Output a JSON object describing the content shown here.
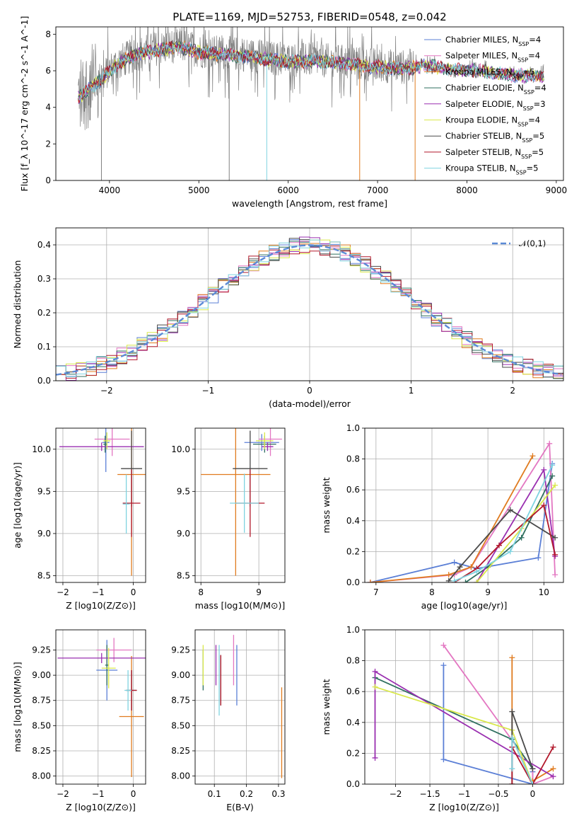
{
  "figure_title": "PLATE=1169, MJD=52753, FIBERID=0548, z=0.042",
  "models": [
    {
      "name": "Chabrier MILES, N",
      "sub": "SSP",
      "nssp": "=4",
      "color": "#5b7fd6"
    },
    {
      "name": "Salpeter MILES, N",
      "sub": "SSP",
      "nssp": "=4",
      "color": "#e377c2"
    },
    {
      "name": "Kroupa MILES, N",
      "sub": "SSP",
      "nssp": "=5",
      "color": "#e07b1f"
    },
    {
      "name": "Chabrier ELODIE, N",
      "sub": "SSP",
      "nssp": "=4",
      "color": "#2f6f5f"
    },
    {
      "name": "Salpeter ELODIE, N",
      "sub": "SSP",
      "nssp": "=3",
      "color": "#9a2fb0"
    },
    {
      "name": "Kroupa ELODIE, N",
      "sub": "SSP",
      "nssp": "=4",
      "color": "#d9e84a"
    },
    {
      "name": "Chabrier STELIB, N",
      "sub": "SSP",
      "nssp": "=5",
      "color": "#4a4a4a"
    },
    {
      "name": "Salpeter STELIB, N",
      "sub": "SSP",
      "nssp": "=5",
      "color": "#b2182b"
    },
    {
      "name": "Kroupa STELIB, N",
      "sub": "SSP",
      "nssp": "=5",
      "color": "#7fd3e0"
    }
  ],
  "chart_data": [
    {
      "id": "spectrum",
      "type": "line",
      "xlabel": "wavelength [Angstrom, rest frame]",
      "ylabel": "Flux [f_λ 10^-17 erg cm^-2 s^-1 A^-1]",
      "xlim": [
        3400,
        9080
      ],
      "ylim": [
        0,
        8.4
      ],
      "xticks": [
        4000,
        5000,
        6000,
        7000,
        8000,
        9000
      ],
      "yticks": [
        0,
        2,
        4,
        6,
        8
      ],
      "data_color": "#808080",
      "data_continuum": {
        "x": [
          3650,
          3900,
          4100,
          4300,
          4500,
          4800,
          5000,
          5200,
          5500,
          5800,
          6000,
          6300,
          6600,
          7000,
          7300,
          7500,
          7800,
          8100,
          8400,
          8800
        ],
        "y": [
          4.6,
          5.6,
          6.5,
          6.9,
          7.2,
          7.4,
          7.1,
          7.0,
          6.9,
          6.7,
          6.6,
          6.6,
          6.5,
          6.3,
          6.2,
          6.4,
          6.2,
          6.1,
          5.9,
          5.8
        ]
      },
      "data_noise": [
        {
          "x_range": [
            3650,
            7400
          ],
          "amplitude": 1.8
        },
        {
          "x_range": [
            7400,
            8900
          ],
          "amplitude": 0.4
        }
      ],
      "model_continuum": {
        "x": [
          3650,
          3900,
          4100,
          4300,
          4500,
          4800,
          5000,
          5200,
          5500,
          5800,
          6000,
          6300,
          6600,
          7000,
          7300,
          7500,
          7800,
          8100,
          8400,
          8800
        ],
        "y": [
          4.5,
          5.5,
          6.4,
          6.9,
          7.1,
          7.3,
          7.0,
          6.9,
          6.8,
          6.6,
          6.5,
          6.5,
          6.4,
          6.2,
          6.1,
          6.3,
          6.1,
          6.0,
          5.8,
          5.7
        ]
      },
      "model_ends": [
        {
          "model": 2,
          "x_end": 7420
        },
        {
          "model": 8,
          "x_end": 8790
        }
      ],
      "dips": [
        {
          "x": 3780,
          "y": 3.3
        },
        {
          "x": 3910,
          "y": 0.0
        },
        {
          "x": 5340,
          "y": 0.0
        },
        {
          "x": 5760,
          "y": 0.0
        },
        {
          "x": 6800,
          "y": 0.0
        },
        {
          "x": 7420,
          "y": 0.0
        }
      ]
    },
    {
      "id": "residuals",
      "type": "histogram",
      "xlabel": "(data-model)/error",
      "ylabel": "Normed distribution",
      "xlim": [
        -2.5,
        2.5
      ],
      "ylim": [
        0,
        0.45
      ],
      "xticks": [
        -2,
        -1,
        0,
        1,
        2
      ],
      "yticks": [
        0.0,
        0.1,
        0.2,
        0.3,
        0.4
      ],
      "bin_width": 0.1,
      "reference_curve": {
        "label": "𝒩(0,1)",
        "color": "#5b8ad6",
        "style": "dashed"
      }
    },
    {
      "id": "age_vs_Z",
      "type": "errorbar",
      "xlabel": "Z [log10(Z/Z⊙)]",
      "ylabel": "age [log10(age/yr)]",
      "xlim": [
        -2.2,
        0.35
      ],
      "ylim": [
        8.42,
        10.25
      ],
      "xticks": [
        -2,
        -1,
        0
      ],
      "yticks": [
        8.5,
        9.0,
        9.5,
        10.0
      ],
      "points": [
        {
          "m": 0,
          "x": -0.78,
          "y": 10.08,
          "xerr": 0.1,
          "yerr": 0.35
        },
        {
          "m": 1,
          "x": -0.6,
          "y": 10.12,
          "xerr": 0.5,
          "yerr": 0.2
        },
        {
          "m": 2,
          "x": -0.05,
          "y": 9.7,
          "xerr": 0.4,
          "yerr": 1.2
        },
        {
          "m": 3,
          "x": -0.8,
          "y": 10.06,
          "xerr": 0.05,
          "yerr": 0.1
        },
        {
          "m": 4,
          "x": -0.9,
          "y": 10.03,
          "xerr": 1.2,
          "yerr": 0.05
        },
        {
          "m": 5,
          "x": -0.75,
          "y": 10.1,
          "xerr": 0.1,
          "yerr": 0.1
        },
        {
          "m": 6,
          "x": -0.05,
          "y": 9.77,
          "xerr": 0.3,
          "yerr": 0.45
        },
        {
          "m": 7,
          "x": -0.05,
          "y": 9.36,
          "xerr": 0.25,
          "yerr": 0.4
        },
        {
          "m": 8,
          "x": -0.2,
          "y": 9.35,
          "xerr": 0.1,
          "yerr": 0.35
        }
      ]
    },
    {
      "id": "age_vs_mass",
      "type": "errorbar",
      "xlabel": "mass [log10(M/M⊙)]",
      "ylabel": "",
      "xlim": [
        7.9,
        9.45
      ],
      "ylim": [
        8.42,
        10.25
      ],
      "xticks": [
        8,
        9
      ],
      "yticks": [
        8.5,
        9.0,
        9.5,
        10.0
      ],
      "points": [
        {
          "m": 0,
          "x": 9.05,
          "y": 10.08,
          "xerr": 0.3,
          "yerr": 0.1
        },
        {
          "m": 1,
          "x": 9.2,
          "y": 10.12,
          "xerr": 0.2,
          "yerr": 0.2
        },
        {
          "m": 2,
          "x": 8.6,
          "y": 9.7,
          "xerr": 0.6,
          "yerr": 1.2
        },
        {
          "m": 3,
          "x": 9.1,
          "y": 10.06,
          "xerr": 0.2,
          "yerr": 0.1
        },
        {
          "m": 4,
          "x": 9.15,
          "y": 10.03,
          "xerr": 0.1,
          "yerr": 0.05
        },
        {
          "m": 5,
          "x": 9.1,
          "y": 10.1,
          "xerr": 0.15,
          "yerr": 0.1
        },
        {
          "m": 6,
          "x": 8.85,
          "y": 9.77,
          "xerr": 0.3,
          "yerr": 0.45
        },
        {
          "m": 7,
          "x": 8.85,
          "y": 9.36,
          "xerr": 0.25,
          "yerr": 0.4
        },
        {
          "m": 8,
          "x": 8.75,
          "y": 9.36,
          "xerr": 0.25,
          "yerr": 0.35
        }
      ]
    },
    {
      "id": "massweight_vs_age",
      "type": "line",
      "xlabel": "age [log10(age/yr)]",
      "ylabel": "mass weight",
      "xlim": [
        6.8,
        10.35
      ],
      "ylim": [
        0,
        1.0
      ],
      "xticks": [
        7,
        8,
        9,
        10
      ],
      "yticks": [
        0.0,
        0.2,
        0.4,
        0.6,
        0.8,
        1.0
      ],
      "series": [
        {
          "m": 0,
          "x": [
            6.9,
            8.4,
            8.8,
            9.9,
            10.15
          ],
          "y": [
            0.0,
            0.13,
            0.09,
            0.16,
            0.77
          ]
        },
        {
          "m": 1,
          "x": [
            6.9,
            8.4,
            8.7,
            10.1,
            10.2
          ],
          "y": [
            0.0,
            0.05,
            0.1,
            0.9,
            0.05
          ]
        },
        {
          "m": 2,
          "x": [
            6.9,
            8.3,
            8.7,
            9.8
          ],
          "y": [
            0.0,
            0.05,
            0.1,
            0.82
          ]
        },
        {
          "m": 3,
          "x": [
            8.6,
            9.0,
            9.6,
            10.15
          ],
          "y": [
            0.0,
            0.1,
            0.29,
            0.69
          ]
        },
        {
          "m": 4,
          "x": [
            8.8,
            10.0,
            10.2
          ],
          "y": [
            0.0,
            0.73,
            0.17
          ]
        },
        {
          "m": 5,
          "x": [
            8.8,
            9.6,
            10.2
          ],
          "y": [
            0.0,
            0.35,
            0.63
          ]
        },
        {
          "m": 6,
          "x": [
            8.3,
            8.5,
            9.4,
            10.2
          ],
          "y": [
            0.01,
            0.1,
            0.47,
            0.29
          ]
        },
        {
          "m": 7,
          "x": [
            8.4,
            8.8,
            9.2,
            10.0,
            10.2
          ],
          "y": [
            0.0,
            0.09,
            0.24,
            0.5,
            0.18
          ]
        },
        {
          "m": 8,
          "x": [
            8.4,
            8.8,
            9.4,
            10.15
          ],
          "y": [
            0.01,
            0.07,
            0.2,
            0.76
          ]
        }
      ]
    },
    {
      "id": "mass_vs_Z",
      "type": "errorbar",
      "xlabel": "Z [log10(Z/Z⊙)]",
      "ylabel": "mass [log10(M/M⊙)]",
      "xlim": [
        -2.2,
        0.35
      ],
      "ylim": [
        7.92,
        9.45
      ],
      "xticks": [
        -2,
        -1,
        0
      ],
      "yticks": [
        8.0,
        8.25,
        8.5,
        8.75,
        9.0,
        9.25
      ],
      "points": [
        {
          "m": 0,
          "x": -0.75,
          "y": 9.05,
          "xerr": 0.3,
          "yerr": 0.3
        },
        {
          "m": 1,
          "x": -0.55,
          "y": 9.25,
          "xerr": 0.5,
          "yerr": 0.12
        },
        {
          "m": 2,
          "x": -0.05,
          "y": 8.59,
          "xerr": 0.35,
          "yerr": 0.6
        },
        {
          "m": 3,
          "x": -0.75,
          "y": 9.1,
          "xerr": 0.05,
          "yerr": 0.2
        },
        {
          "m": 4,
          "x": -0.9,
          "y": 9.17,
          "xerr": 1.25,
          "yerr": 0.05
        },
        {
          "m": 5,
          "x": -0.7,
          "y": 9.07,
          "xerr": 0.2,
          "yerr": 0.2
        },
        {
          "m": 6,
          "x": -0.05,
          "y": 8.85,
          "xerr": 0.15,
          "yerr": 0.2
        },
        {
          "m": 7,
          "x": -0.05,
          "y": 8.85,
          "xerr": 0.15,
          "yerr": 0.2
        },
        {
          "m": 8,
          "x": -0.15,
          "y": 8.85,
          "xerr": 0.1,
          "yerr": 0.2
        }
      ]
    },
    {
      "id": "mass_vs_EBV",
      "type": "errorbar",
      "xlabel": "E(B-V)",
      "ylabel": "",
      "xlim": [
        0.04,
        0.32
      ],
      "ylim": [
        7.92,
        9.45
      ],
      "xticks": [
        0.1,
        0.2,
        0.3
      ],
      "yticks": [
        8.0,
        8.25,
        8.5,
        8.75,
        9.0,
        9.25
      ],
      "points": [
        {
          "m": 0,
          "x": 0.17,
          "y": 9.0,
          "xerr": 0,
          "yerr": 0.3
        },
        {
          "m": 1,
          "x": 0.16,
          "y": 9.15,
          "xerr": 0,
          "yerr": 0.25
        },
        {
          "m": 2,
          "x": 0.31,
          "y": 8.43,
          "xerr": 0,
          "yerr": 0.45
        },
        {
          "m": 3,
          "x": 0.065,
          "y": 9.05,
          "xerr": 0,
          "yerr": 0.2
        },
        {
          "m": 4,
          "x": 0.105,
          "y": 9.1,
          "xerr": 0,
          "yerr": 0.2
        },
        {
          "m": 5,
          "x": 0.065,
          "y": 9.1,
          "xerr": 0,
          "yerr": 0.2
        },
        {
          "m": 6,
          "x": 0.12,
          "y": 8.95,
          "xerr": 0,
          "yerr": 0.25
        },
        {
          "m": 7,
          "x": 0.12,
          "y": 8.95,
          "xerr": 0,
          "yerr": 0.25
        },
        {
          "m": 8,
          "x": 0.115,
          "y": 8.95,
          "xerr": 0,
          "yerr": 0.35
        }
      ]
    },
    {
      "id": "massweight_vs_Z",
      "type": "line",
      "xlabel": "Z [log10(Z/Z⊙)]",
      "ylabel": "mass weight",
      "xlim": [
        -2.45,
        0.45
      ],
      "ylim": [
        0,
        1.0
      ],
      "xticks": [
        -2.0,
        -1.5,
        -1.0,
        -0.5,
        0.0
      ],
      "yticks": [
        0.0,
        0.2,
        0.4,
        0.6,
        0.8,
        1.0
      ],
      "series": [
        {
          "m": 0,
          "x": [
            -1.3,
            -1.3,
            0.0,
            0.0
          ],
          "y": [
            0.77,
            0.16,
            0.0,
            0.08
          ]
        },
        {
          "m": 1,
          "x": [
            -1.3,
            0.0,
            0.0,
            0.3
          ],
          "y": [
            0.9,
            0.1,
            0.0,
            0.05
          ]
        },
        {
          "m": 2,
          "x": [
            -0.3,
            -0.3,
            0.0,
            0.0,
            0.3
          ],
          "y": [
            0.82,
            0.3,
            0.0,
            0.02,
            0.1
          ]
        },
        {
          "m": 3,
          "x": [
            -2.3,
            -0.3,
            0.0
          ],
          "y": [
            0.69,
            0.29,
            0.1
          ]
        },
        {
          "m": 4,
          "x": [
            -2.3,
            -2.3,
            0.3
          ],
          "y": [
            0.17,
            0.73,
            0.05
          ]
        },
        {
          "m": 5,
          "x": [
            -2.3,
            -0.3,
            0.0
          ],
          "y": [
            0.63,
            0.35,
            0.0
          ]
        },
        {
          "m": 6,
          "x": [
            -0.3,
            -0.3,
            0.0
          ],
          "y": [
            0.0,
            0.47,
            0.1
          ]
        },
        {
          "m": 7,
          "x": [
            -0.3,
            -0.3,
            0.0,
            0.3
          ],
          "y": [
            0.0,
            0.24,
            0.0,
            0.24
          ]
        },
        {
          "m": 8,
          "x": [
            -0.3,
            -0.3,
            0.0
          ],
          "y": [
            0.1,
            0.3,
            0.0
          ]
        }
      ]
    }
  ]
}
